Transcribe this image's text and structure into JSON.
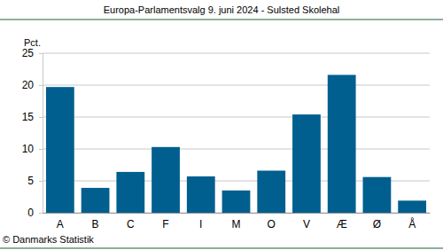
{
  "chart_data": {
    "type": "bar",
    "title": "Europa-Parlamentsvalg 9. juni 2024 - Sulsted Skolehal",
    "y_label": "Pct.",
    "source": "© Danmarks Statistik",
    "categories": [
      "A",
      "B",
      "C",
      "F",
      "I",
      "M",
      "O",
      "V",
      "Æ",
      "Ø",
      "Å"
    ],
    "values": [
      19.7,
      3.9,
      6.4,
      10.3,
      5.7,
      3.5,
      6.6,
      15.4,
      21.6,
      5.6,
      1.9
    ],
    "color": "#005f8f",
    "ylim": [
      0,
      25
    ],
    "yticks": [
      0,
      5,
      10,
      15,
      20,
      25
    ],
    "grid": true
  }
}
